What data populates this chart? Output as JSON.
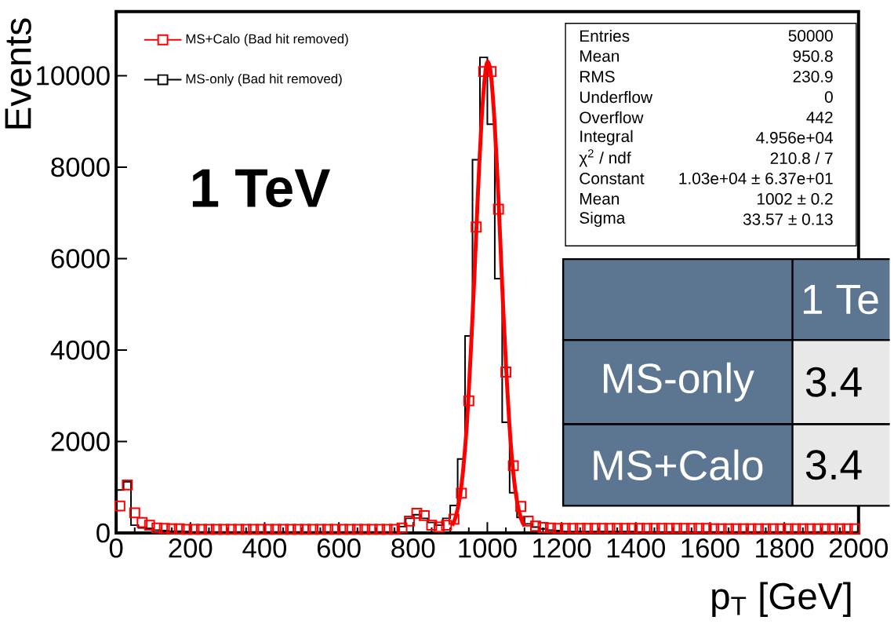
{
  "chart_data": {
    "type": "histogram",
    "xlabel": "p$_{T}$ [GeV]",
    "ylabel": "Events",
    "annotations": [
      "1 TeV",
      "Entries",
      "50000",
      "Mean",
      "950.8",
      "RMS",
      "230.9",
      "Underflow",
      "0",
      "Overflow",
      "442",
      "Integral",
      "4.956e+04",
      "χ$^{2}$ / ndf",
      "210.8 / 7",
      "Constant",
      "1.03e+04 ± 6.37e+01",
      "Mean",
      "1002 ± 0.2",
      "Sigma",
      "33.57 ± 0.13",
      "MS-only",
      "MS+Calo",
      "1 Te",
      "3.4",
      "3.4"
    ],
    "bins": [
      0,
      20,
      40,
      60,
      80,
      100,
      120,
      140,
      160,
      180,
      200,
      220,
      240,
      260,
      280,
      300,
      320,
      340,
      360,
      380,
      400,
      420,
      440,
      460,
      480,
      500,
      520,
      540,
      560,
      580,
      600,
      620,
      640,
      660,
      680,
      700,
      720,
      740,
      760,
      780,
      800,
      820,
      840,
      860,
      880,
      900,
      920,
      940,
      960,
      980,
      1000,
      1020,
      1040,
      1060,
      1080,
      1100,
      1120,
      1140,
      1160,
      1180,
      1200,
      1220,
      1240,
      1260,
      1280,
      1300,
      1320,
      1340,
      1360,
      1380,
      1400,
      1420,
      1440,
      1460,
      1480,
      1500,
      1520,
      1540,
      1560,
      1580,
      1600,
      1620,
      1640,
      1660,
      1680,
      1700,
      1720,
      1740,
      1760,
      1780,
      1800,
      1820,
      1840,
      1860,
      1880,
      1900,
      1920,
      1940,
      1960,
      1980,
      2000
    ],
    "series": [
      {
        "name": "MS+Calo (Bad hit removed)",
        "type": "scatter",
        "color": "#ff0000",
        "x": [
          10,
          30,
          50,
          70,
          90,
          110,
          130,
          150,
          170,
          190,
          210,
          230,
          250,
          270,
          290,
          310,
          330,
          350,
          370,
          390,
          410,
          430,
          450,
          470,
          490,
          510,
          530,
          550,
          570,
          590,
          610,
          630,
          650,
          670,
          690,
          710,
          730,
          750,
          770,
          790,
          810,
          830,
          850,
          870,
          890,
          910,
          930,
          950,
          970,
          990,
          1010,
          1030,
          1050,
          1070,
          1090,
          1110,
          1130,
          1150,
          1170,
          1190,
          1210,
          1230,
          1250,
          1270,
          1290,
          1310,
          1330,
          1350,
          1370,
          1390,
          1410,
          1430,
          1450,
          1470,
          1490,
          1510,
          1530,
          1550,
          1570,
          1590,
          1610,
          1630,
          1650,
          1670,
          1690,
          1710,
          1730,
          1750,
          1770,
          1790,
          1810,
          1830,
          1850,
          1870,
          1890,
          1910,
          1930,
          1950,
          1970,
          1990
        ],
        "values": [
          590,
          1050,
          440,
          230,
          170,
          110,
          100,
          90,
          90,
          80,
          80,
          80,
          80,
          80,
          80,
          80,
          80,
          80,
          80,
          80,
          80,
          80,
          80,
          80,
          80,
          80,
          80,
          80,
          80,
          80,
          80,
          80,
          80,
          80,
          80,
          80,
          80,
          80,
          110,
          260,
          430,
          380,
          170,
          130,
          170,
          300,
          870,
          2890,
          6690,
          10090,
          10090,
          7080,
          3520,
          1470,
          580,
          260,
          150,
          120,
          110,
          100,
          100,
          100,
          100,
          100,
          100,
          100,
          100,
          100,
          100,
          100,
          100,
          100,
          100,
          100,
          100,
          100,
          100,
          100,
          100,
          100,
          90,
          90,
          90,
          90,
          90,
          90,
          90,
          90,
          90,
          90,
          90,
          90,
          90,
          90,
          90,
          90,
          90,
          90,
          90,
          90
        ]
      },
      {
        "name": "MS-only (Bad hit removed)",
        "color": "#000000",
        "values": [
          940,
          1120,
          170,
          110,
          100,
          60,
          50,
          40,
          40,
          30,
          20,
          20,
          20,
          20,
          20,
          20,
          20,
          20,
          20,
          20,
          20,
          20,
          20,
          20,
          20,
          20,
          20,
          20,
          20,
          20,
          20,
          20,
          20,
          20,
          20,
          20,
          20,
          20,
          140,
          320,
          400,
          320,
          230,
          170,
          320,
          600,
          1620,
          4310,
          8160,
          10400,
          8940,
          5560,
          2420,
          880,
          340,
          200,
          130,
          90,
          60,
          50,
          30,
          30,
          30,
          30,
          30,
          30,
          30,
          30,
          30,
          30,
          20,
          20,
          20,
          20,
          20,
          20,
          20,
          20,
          20,
          20,
          20,
          20,
          20,
          20,
          20,
          20,
          20,
          20,
          20,
          20,
          20,
          20,
          20,
          20,
          20,
          20,
          20,
          20,
          20,
          20
        ]
      },
      {
        "type": "line",
        "color": "#ff0000",
        "marker": "none",
        "x": [
          905,
          915,
          925,
          935,
          945,
          955,
          965,
          975,
          985,
          995,
          1002,
          1010,
          1020,
          1030,
          1040,
          1050,
          1060,
          1070,
          1080,
          1090,
          1100
        ],
        "values": [
          160,
          360,
          740,
          1400,
          2400,
          3900,
          5600,
          7500,
          9100,
          10100,
          10300,
          10000,
          8900,
          7300,
          5400,
          3700,
          2300,
          1300,
          690,
          330,
          150
        ]
      }
    ],
    "xlim": [
      0,
      2000
    ],
    "ylim": [
      0,
      11400
    ],
    "xticks": [
      0,
      200,
      400,
      600,
      800,
      1000,
      1200,
      1400,
      1600,
      1800,
      2000
    ],
    "yticks": [
      0,
      2000,
      4000,
      6000,
      8000,
      10000
    ],
    "legend": "top left",
    "marker": "square",
    "grid": false
  }
}
